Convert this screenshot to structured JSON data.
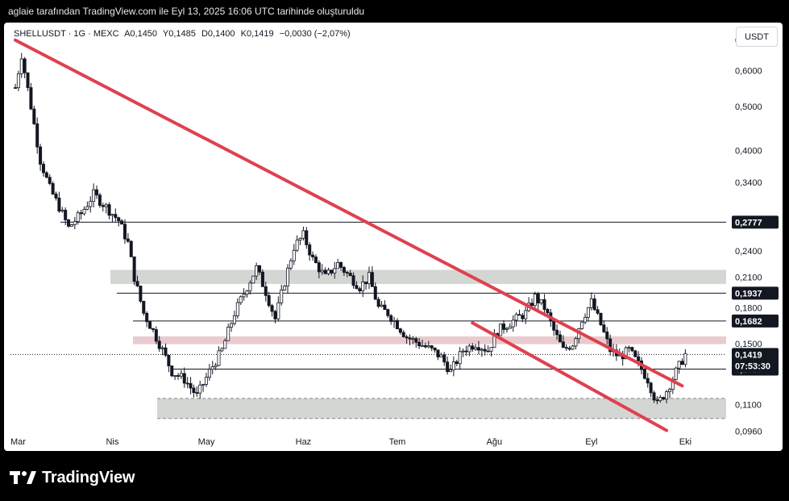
{
  "attribution": "aglaie tarafından TradingView.com ile Eyl 13, 2025 16:06 UTC tarihinde oluşturuldu",
  "legend": {
    "symbol": "SHELLUSDT · 1G · MEXC",
    "open": "A0,1450",
    "high": "Y0,1485",
    "low": "D0,1400",
    "close": "K0,1419",
    "change": "−0,0030 (−2,07%)"
  },
  "currency_button": "USDT",
  "brand": "TradingView",
  "colors": {
    "up": "#131722",
    "down": "#131722",
    "trendline": "#e0404f",
    "zone_gray": "#d1d4d1",
    "zone_red": "#e8c8cc",
    "label_bg": "#131722"
  },
  "chart_data": {
    "type": "candlestick",
    "y_scale": "log",
    "ylim": [
      0.092,
      0.75
    ],
    "x_ticks": [
      "Mar",
      "Nis",
      "May",
      "Haz",
      "Tem",
      "Ağu",
      "Eyl",
      "Eki"
    ],
    "y_ticks": [
      "0,7000",
      "0,6000",
      "0,5000",
      "0,4000",
      "0,3400",
      "0,2400",
      "0,2100",
      "0,1800",
      "0,1500",
      "0,1100",
      "0,0960"
    ],
    "horizontal_levels": [
      {
        "value": 0.2777,
        "label": "0,2777"
      },
      {
        "value": 0.1937,
        "label": "0,1937"
      },
      {
        "value": 0.1682,
        "label": "0,1682"
      },
      {
        "value": 0.1317,
        "label": "0,1317"
      }
    ],
    "last_price": {
      "value": 0.1419,
      "label": "0,1419",
      "countdown": "07:53:30"
    },
    "zones": [
      {
        "type": "gray",
        "from": 0.203,
        "to": 0.218
      },
      {
        "type": "red",
        "from": 0.1495,
        "to": 0.1555
      },
      {
        "type": "gray",
        "from": 0.1025,
        "to": 0.1135
      }
    ],
    "trendlines": [
      {
        "from": [
          "Mar 1",
          0.7
        ],
        "to": [
          "Eyl 30",
          0.121
        ]
      },
      {
        "from": [
          "Tem 25",
          0.1665
        ],
        "to": [
          "Eyl 25",
          0.0965
        ]
      }
    ],
    "close_anchors": [
      [
        "Mar 1",
        0.55
      ],
      [
        "Mar 3",
        0.65
      ],
      [
        "Mar 6",
        0.5
      ],
      [
        "Mar 9",
        0.38
      ],
      [
        "Mar 12",
        0.33
      ],
      [
        "Mar 15",
        0.3
      ],
      [
        "Mar 18",
        0.27
      ],
      [
        "Mar 22",
        0.29
      ],
      [
        "Mar 26",
        0.32
      ],
      [
        "Mar 30",
        0.3
      ],
      [
        "Nis 3",
        0.28
      ],
      [
        "Nis 6",
        0.25
      ],
      [
        "Nis 8",
        0.21
      ],
      [
        "Nis 11",
        0.175
      ],
      [
        "Nis 14",
        0.16
      ],
      [
        "Nis 17",
        0.145
      ],
      [
        "Nis 20",
        0.13
      ],
      [
        "Nis 24",
        0.125
      ],
      [
        "Nis 28",
        0.115
      ],
      [
        "Mayıs 2",
        0.13
      ],
      [
        "Mayıs 6",
        0.145
      ],
      [
        "Mayıs 10",
        0.175
      ],
      [
        "Mayıs 14",
        0.2
      ],
      [
        "Mayıs 17",
        0.22
      ],
      [
        "Mayıs 20",
        0.195
      ],
      [
        "Mayıs 23",
        0.17
      ],
      [
        "Mayıs 26",
        0.205
      ],
      [
        "Mayıs 29",
        0.245
      ],
      [
        "Haz 1",
        0.26
      ],
      [
        "Haz 4",
        0.23
      ],
      [
        "Haz 8",
        0.21
      ],
      [
        "Haz 12",
        0.225
      ],
      [
        "Haz 16",
        0.21
      ],
      [
        "Haz 19",
        0.2
      ],
      [
        "Haz 22",
        0.21
      ],
      [
        "Haz 25",
        0.18
      ],
      [
        "Haz 28",
        0.175
      ],
      [
        "Tem 1",
        0.165
      ],
      [
        "Tem 4",
        0.155
      ],
      [
        "Tem 8",
        0.15
      ],
      [
        "Tem 12",
        0.145
      ],
      [
        "Tem 15",
        0.14
      ],
      [
        "Tem 18",
        0.13
      ],
      [
        "Tem 22",
        0.145
      ],
      [
        "Tem 26",
        0.15
      ],
      [
        "Tem 30",
        0.145
      ],
      [
        "Ağu 2",
        0.16
      ],
      [
        "Ağu 5",
        0.165
      ],
      [
        "Ağu 8",
        0.17
      ],
      [
        "Ağu 11",
        0.175
      ],
      [
        "Ağu 14",
        0.19
      ],
      [
        "Ağu 17",
        0.18
      ],
      [
        "Ağu 20",
        0.16
      ],
      [
        "Ağu 23",
        0.145
      ],
      [
        "Ağu 26",
        0.15
      ],
      [
        "Ağu 29",
        0.17
      ],
      [
        "Eyl 1",
        0.185
      ],
      [
        "Eyl 4",
        0.165
      ],
      [
        "Eyl 7",
        0.145
      ],
      [
        "Eyl 10",
        0.14
      ],
      [
        "Eyl 13",
        0.145
      ],
      [
        "Eyl 16",
        0.135
      ],
      [
        "Eyl 19",
        0.125
      ],
      [
        "Eyl 22",
        0.11
      ],
      [
        "Eyl 25",
        0.118
      ],
      [
        "Eyl 28",
        0.13
      ],
      [
        "Eyl 31",
        0.142
      ]
    ]
  }
}
